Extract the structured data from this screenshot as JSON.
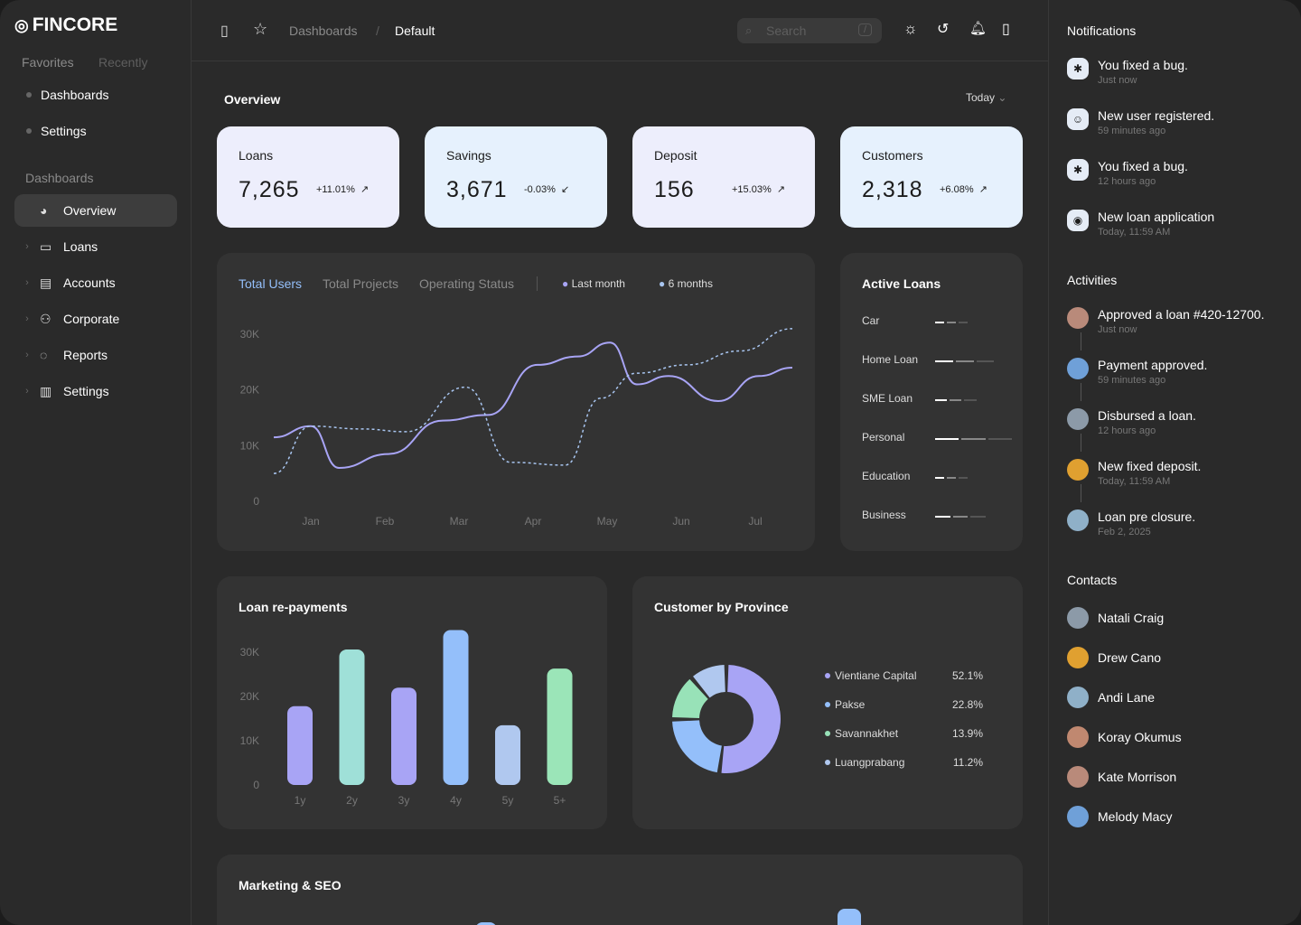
{
  "brand": "FINCORE",
  "sidebar": {
    "tabs": [
      "Favorites",
      "Recently"
    ],
    "favorites": [
      "Dashboards",
      "Settings"
    ],
    "section": "Dashboards",
    "items": [
      {
        "label": "Overview",
        "icon": "pie-chart-icon",
        "active": true
      },
      {
        "label": "Loans",
        "icon": "inbox-icon"
      },
      {
        "label": "Accounts",
        "icon": "id-card-icon"
      },
      {
        "label": "Corporate",
        "icon": "users-icon"
      },
      {
        "label": "Reports",
        "icon": "chat-icon"
      },
      {
        "label": "Settings",
        "icon": "notebook-icon"
      }
    ]
  },
  "topbar": {
    "breadcrumb": [
      "Dashboards",
      "Default"
    ],
    "search_placeholder": "Search",
    "search_shortcut": "/"
  },
  "overview": {
    "title": "Overview",
    "range": "Today",
    "kpis": [
      {
        "label": "Loans",
        "value": "7,265",
        "change": "+11.01%",
        "trend": "up",
        "bg": "#EDEEFC"
      },
      {
        "label": "Savings",
        "value": "3,671",
        "change": "-0.03%",
        "trend": "down",
        "bg": "#E6F1FD"
      },
      {
        "label": "Deposit",
        "value": "156",
        "change": "+15.03%",
        "trend": "up",
        "bg": "#EDEEFC"
      },
      {
        "label": "Customers",
        "value": "2,318",
        "change": "+6.08%",
        "trend": "up",
        "bg": "#E6F1FD"
      }
    ]
  },
  "users_chart": {
    "tabs": [
      "Total Users",
      "Total Projects",
      "Operating Status"
    ],
    "active_tab": "Total Users",
    "legend": [
      "Last month",
      "6 months"
    ]
  },
  "active_loans": {
    "title": "Active Loans",
    "items": [
      {
        "label": "Car",
        "level": 0.3
      },
      {
        "label": "Home Loan",
        "level": 0.6
      },
      {
        "label": "SME Loan",
        "level": 0.4
      },
      {
        "label": "Personal",
        "level": 0.8
      },
      {
        "label": "Education",
        "level": 0.3
      },
      {
        "label": "Business",
        "level": 0.5
      }
    ]
  },
  "repayments_title": "Loan re-payments",
  "province_title": "Customer by Province",
  "marketing_title": "Marketing & SEO",
  "chart_data": [
    {
      "type": "line",
      "xticks": [
        "Jan",
        "Feb",
        "Mar",
        "Apr",
        "May",
        "Jun",
        "Jul"
      ],
      "yticks": [
        "0",
        "10K",
        "20K",
        "30K"
      ],
      "ylim": [
        0,
        30000
      ],
      "series": [
        {
          "name": "Last month",
          "color": "#A8A4F5",
          "style": "solid",
          "x": [
            0.5,
            1,
            1.38,
            2.05,
            2.78,
            3.39,
            4.06,
            4.6,
            5.04,
            5.4,
            5.83,
            6.5,
            7.05,
            7.5
          ],
          "y": [
            11500,
            13500,
            6000,
            8500,
            14500,
            15500,
            24500,
            26000,
            28500,
            21000,
            22500,
            18000,
            22500,
            24000
          ]
        },
        {
          "name": "6 months",
          "color": "#A8C5F0",
          "style": "dashed",
          "x": [
            0.5,
            1,
            1.68,
            2.29,
            3.09,
            3.7,
            4.43,
            4.91,
            5.4,
            6.07,
            6.8,
            7.5
          ],
          "y": [
            5000,
            13500,
            13000,
            12500,
            20500,
            7000,
            6500,
            18500,
            23000,
            24500,
            27000,
            31000
          ]
        }
      ]
    },
    {
      "type": "bar",
      "categories": [
        "1y",
        "2y",
        "3y",
        "4y",
        "5y",
        "5+"
      ],
      "values": [
        17800,
        30600,
        22000,
        35000,
        13500,
        26300
      ],
      "colors": [
        "#A8A4F5",
        "#9FE0D8",
        "#A8A4F5",
        "#94BFFA",
        "#B0C8EF",
        "#9BE5B8"
      ],
      "yticks": [
        "0",
        "10K",
        "20K",
        "30K"
      ],
      "ylim": [
        0,
        30000
      ]
    },
    {
      "type": "pie",
      "labels": [
        "Vientiane Capital",
        "Pakse",
        "Savannakhet",
        "Luangprabang"
      ],
      "values": [
        52.1,
        22.8,
        13.9,
        11.2
      ],
      "display": [
        "52.1%",
        "22.8%",
        "13.9%",
        "11.2%"
      ],
      "colors": [
        "#A8A4F5",
        "#94BFFA",
        "#98E2B8",
        "#B0C8EF"
      ]
    }
  ],
  "notifications": {
    "title": "Notifications",
    "items": [
      {
        "text": "You fixed a bug.",
        "time": "Just now",
        "icon": "bug-icon"
      },
      {
        "text": "New user registered.",
        "time": "59 minutes ago",
        "icon": "user-icon"
      },
      {
        "text": "You fixed a bug.",
        "time": "12 hours ago",
        "icon": "bug-icon"
      },
      {
        "text": "New loan application",
        "time": "Today, 11:59 AM",
        "icon": "broadcast-icon"
      }
    ]
  },
  "activities": {
    "title": "Activities",
    "items": [
      {
        "text": "Approved a loan #420-12700.",
        "time": "Just now"
      },
      {
        "text": "Payment approved.",
        "time": "59 minutes ago"
      },
      {
        "text": "Disbursed a loan.",
        "time": "12 hours ago"
      },
      {
        "text": "New fixed deposit.",
        "time": "Today, 11:59 AM"
      },
      {
        "text": "Loan pre closure.",
        "time": "Feb 2, 2025"
      }
    ]
  },
  "contacts": {
    "title": "Contacts",
    "items": [
      "Natali Craig",
      "Drew Cano",
      "Andi Lane",
      "Koray Okumus",
      "Kate Morrison",
      "Melody Macy"
    ]
  }
}
